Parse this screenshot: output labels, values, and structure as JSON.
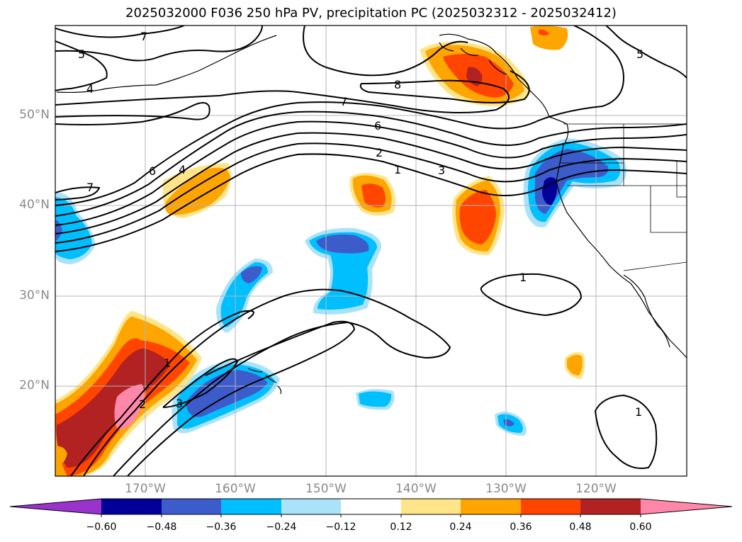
{
  "title": "2025032000 F036 250 hPa PV, precipitation PC (2025032312 - 2025032412)",
  "lat_labels": [
    "50°N",
    "40°N",
    "30°N",
    "20°N"
  ],
  "lon_labels": [
    "170°W",
    "160°W",
    "150°W",
    "140°W",
    "130°W",
    "120°W"
  ],
  "pv_contour_labels": [
    "7",
    "5",
    "4",
    "7",
    "6",
    "4",
    "8",
    "7",
    "6",
    "2",
    "1",
    "3",
    "1",
    "2",
    "3",
    "1",
    "1",
    "5"
  ],
  "colorbar": {
    "ticks": [
      "−0.60",
      "−0.48",
      "−0.36",
      "−0.24",
      "−0.12",
      "0.12",
      "0.24",
      "0.36",
      "0.48",
      "0.60"
    ],
    "colors": [
      "#9933cc",
      "#000099",
      "#3d5ccc",
      "#00bfff",
      "#aae2fa",
      "#ffffff",
      "#ffe58a",
      "#ffa500",
      "#ff4500",
      "#b22222",
      "#ff88aa",
      "#ff88aa"
    ]
  },
  "fill_colors": {
    "neg_strong": "#000099",
    "neg_mid": "#3d5ccc",
    "neg_weak": "#00bfff",
    "neg_faint": "#aae2fa",
    "pos_faint": "#ffe58a",
    "pos_weak": "#ffa500",
    "pos_mid": "#ff4500",
    "pos_strong": "#b22222",
    "pos_extreme": "#ff88aa"
  }
}
